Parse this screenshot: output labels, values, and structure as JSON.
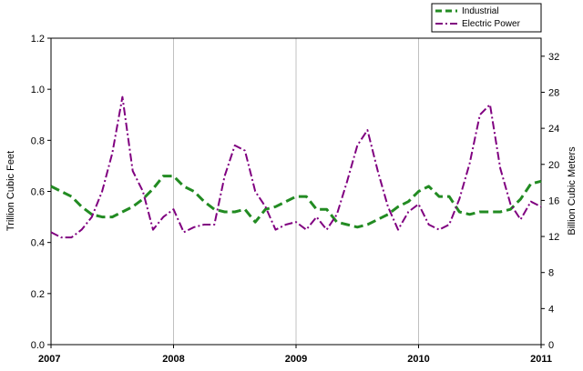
{
  "chart_data": {
    "type": "line",
    "ylabel": "Trillion Cubic Feet",
    "y2label": "Billion Cubic Meters",
    "ylim": [
      0,
      1.2
    ],
    "y2lim": [
      0,
      34
    ],
    "yticks": [
      "0.0",
      "0.2",
      "0.4",
      "0.6",
      "0.8",
      "1.0",
      "1.2"
    ],
    "y2ticks": [
      "0",
      "4",
      "8",
      "12",
      "16",
      "20",
      "24",
      "28",
      "32"
    ],
    "xlim": [
      2007,
      2011
    ],
    "xticks": [
      "2007",
      "2008",
      "2009",
      "2010",
      "2011"
    ],
    "grid": "vertical at year boundaries",
    "legend_position": "top-right",
    "series": [
      {
        "name": "Industrial",
        "color": "#228B22",
        "style": "dashed",
        "x": [
          2007.0,
          2007.083,
          2007.167,
          2007.25,
          2007.333,
          2007.417,
          2007.5,
          2007.583,
          2007.667,
          2007.75,
          2007.833,
          2007.917,
          2008.0,
          2008.083,
          2008.167,
          2008.25,
          2008.333,
          2008.417,
          2008.5,
          2008.583,
          2008.667,
          2008.75,
          2008.833,
          2008.917,
          2009.0,
          2009.083,
          2009.167,
          2009.25,
          2009.333,
          2009.417,
          2009.5,
          2009.583,
          2009.667,
          2009.75,
          2009.833,
          2009.917,
          2010.0,
          2010.083,
          2010.167,
          2010.25,
          2010.333,
          2010.417,
          2010.5,
          2010.583,
          2010.667,
          2010.75,
          2010.833,
          2010.917,
          2011.0
        ],
        "values": [
          0.62,
          0.6,
          0.58,
          0.54,
          0.51,
          0.5,
          0.5,
          0.52,
          0.54,
          0.57,
          0.61,
          0.66,
          0.66,
          0.62,
          0.6,
          0.56,
          0.53,
          0.52,
          0.52,
          0.53,
          0.48,
          0.53,
          0.54,
          0.56,
          0.58,
          0.58,
          0.53,
          0.53,
          0.48,
          0.47,
          0.46,
          0.47,
          0.49,
          0.51,
          0.54,
          0.56,
          0.6,
          0.62,
          0.58,
          0.58,
          0.52,
          0.51,
          0.52,
          0.52,
          0.52,
          0.53,
          0.57,
          0.63,
          0.64
        ]
      },
      {
        "name": "Electric Power",
        "color": "#800080",
        "style": "dash-dot",
        "x": [
          2007.0,
          2007.083,
          2007.167,
          2007.25,
          2007.333,
          2007.417,
          2007.5,
          2007.583,
          2007.667,
          2007.75,
          2007.833,
          2007.917,
          2008.0,
          2008.083,
          2008.167,
          2008.25,
          2008.333,
          2008.417,
          2008.5,
          2008.583,
          2008.667,
          2008.75,
          2008.833,
          2008.917,
          2009.0,
          2009.083,
          2009.167,
          2009.25,
          2009.333,
          2009.417,
          2009.5,
          2009.583,
          2009.667,
          2009.75,
          2009.833,
          2009.917,
          2010.0,
          2010.083,
          2010.167,
          2010.25,
          2010.333,
          2010.417,
          2010.5,
          2010.583,
          2010.667,
          2010.75,
          2010.833,
          2010.917,
          2011.0
        ],
        "values": [
          0.44,
          0.42,
          0.42,
          0.45,
          0.5,
          0.6,
          0.75,
          0.97,
          0.68,
          0.6,
          0.45,
          0.5,
          0.53,
          0.44,
          0.46,
          0.47,
          0.47,
          0.66,
          0.78,
          0.76,
          0.6,
          0.54,
          0.45,
          0.47,
          0.48,
          0.45,
          0.5,
          0.45,
          0.51,
          0.64,
          0.78,
          0.84,
          0.68,
          0.54,
          0.45,
          0.52,
          0.55,
          0.47,
          0.45,
          0.47,
          0.57,
          0.71,
          0.9,
          0.94,
          0.69,
          0.55,
          0.49,
          0.56,
          0.54
        ]
      }
    ]
  }
}
